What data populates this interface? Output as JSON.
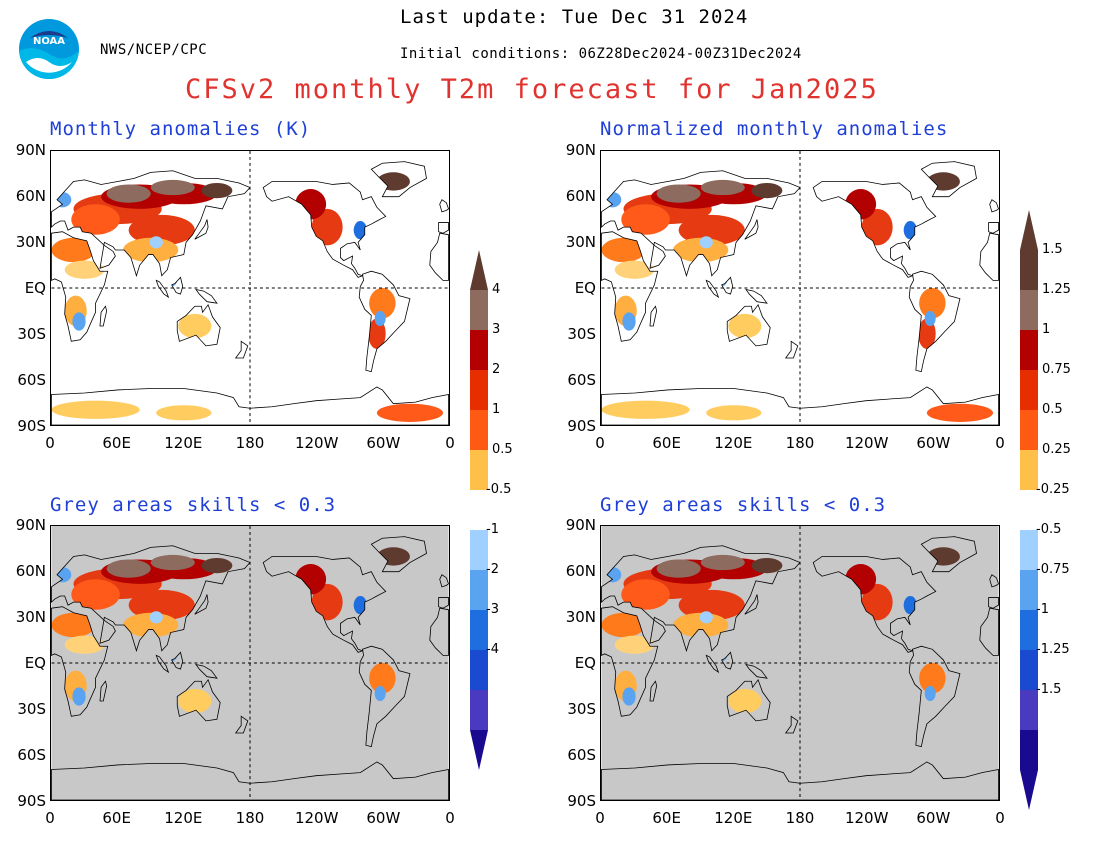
{
  "header": {
    "org": "NWS/NCEP/CPC",
    "last_update": "Last update: Tue Dec 31 2024",
    "initial_conditions": "Initial conditions: 06Z28Dec2024-00Z31Dec2024",
    "title": "CFSv2 monthly T2m forecast for Jan2025"
  },
  "colors": {
    "title": "#e0332f",
    "panel_title": "#1f3fd6",
    "grey_mask": "#c8c8c8",
    "ocean": "#ffffff"
  },
  "panels": [
    {
      "title": "Monthly anomalies (K)",
      "grey": false
    },
    {
      "title": "Normalized monthly anomalies",
      "grey": false
    },
    {
      "title": "Grey areas skills < 0.3",
      "grey": true
    },
    {
      "title": "Grey areas skills < 0.3",
      "grey": true
    }
  ],
  "axes": {
    "lat_labels": [
      "90N",
      "60N",
      "30N",
      "EQ",
      "30S",
      "60S",
      "90S"
    ],
    "lon_labels": [
      "0",
      "60E",
      "120E",
      "180",
      "120W",
      "60W",
      "0"
    ]
  },
  "colorbars": [
    {
      "labels_top": [
        "4",
        "3",
        "2",
        "1",
        "0.5"
      ],
      "labels_bottom": [
        "-0.5",
        "-1",
        "-2",
        "-3",
        "-4"
      ]
    },
    {
      "labels_top": [
        "1.5",
        "1.25",
        "1",
        "0.75",
        "0.5",
        "0.25"
      ],
      "labels_bottom": [
        "-0.25",
        "-0.5",
        "-0.75",
        "-1",
        "-1.25",
        "-1.5"
      ]
    }
  ],
  "icons": {
    "logo": "noaa-logo-icon"
  }
}
